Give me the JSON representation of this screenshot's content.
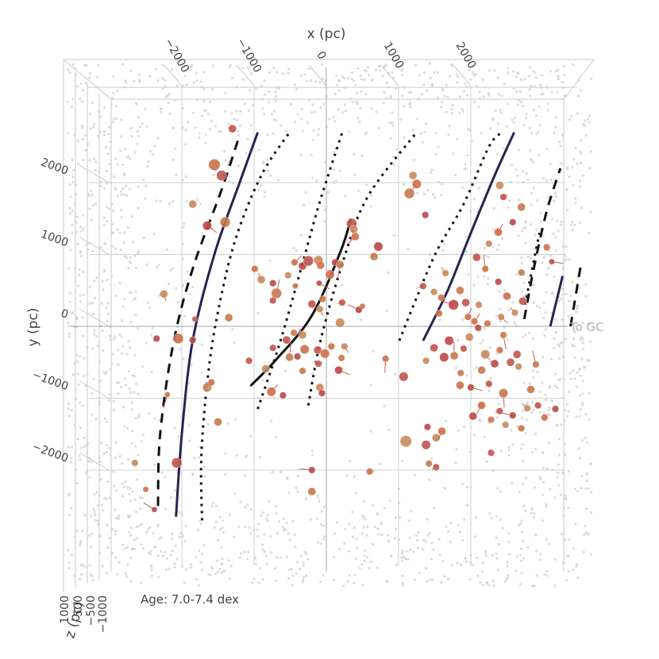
{
  "chart_data": {
    "type": "scatter",
    "title": "",
    "annotation": "Age: 7.0-7.4 dex",
    "gc_label": "To GC",
    "axes": {
      "x": {
        "label": "x (pc)",
        "range": [
          -2300,
          2500
        ],
        "ticks": [
          -2000,
          -1000,
          0,
          1000,
          2000
        ]
      },
      "y": {
        "label": "y (pc)",
        "range": [
          -2700,
          2700
        ],
        "ticks": [
          2000,
          1000,
          0,
          -1000,
          -2000
        ]
      },
      "z": {
        "label": "z (pc)",
        "ticks": [
          1000,
          500,
          -500,
          -1000
        ]
      }
    },
    "colors": {
      "background_points": "#d3cdcc",
      "cluster_palette": [
        "#c0564e",
        "#c88a5c",
        "#d0704a",
        "#b94a48",
        "#c7794e"
      ],
      "arm_fit": "#25244f",
      "spur_fit": "#111111",
      "grid": "#d0d0d0"
    },
    "background_density": "dense field stars concentrated toward the panel edges and corners",
    "spiral_arms": [
      {
        "name": "",
        "style": "solid",
        "center": [
          [
            -2080,
            -2650
          ],
          [
            -2000,
            -1500
          ],
          [
            -1850,
            -200
          ],
          [
            -1550,
            1000
          ],
          [
            -1200,
            2000
          ],
          [
            -950,
            2700
          ]
        ],
        "inner": [
          [
            -1720,
            -2700
          ],
          [
            -1730,
            -1800
          ],
          [
            -1640,
            -700
          ],
          [
            -1500,
            200
          ],
          [
            -1260,
            1200
          ],
          [
            -900,
            2100
          ],
          [
            -510,
            2700
          ]
        ],
        "outer": [
          [
            -2330,
            -2500
          ],
          [
            -2300,
            -1500
          ],
          [
            -2120,
            -250
          ],
          [
            -1850,
            800
          ],
          [
            -1450,
            1900
          ],
          [
            -1220,
            2600
          ]
        ]
      },
      {
        "name": "",
        "style": "solid",
        "center": [
          [
            1340,
            -200
          ],
          [
            1680,
            500
          ],
          [
            2000,
            1300
          ],
          [
            2330,
            2100
          ],
          [
            2600,
            2700
          ]
        ],
        "inner": [
          [
            1010,
            -200
          ],
          [
            1250,
            400
          ],
          [
            1530,
            1050
          ],
          [
            1900,
            1700
          ],
          [
            2250,
            2500
          ],
          [
            2430,
            2700
          ]
        ],
        "outer": [
          [
            2740,
            100
          ],
          [
            2870,
            800
          ],
          [
            3050,
            1600
          ],
          [
            3240,
            2200
          ]
        ]
      },
      {
        "name": "",
        "style": "solid",
        "center": [
          [
            3100,
            0
          ],
          [
            3270,
            700
          ]
        ],
        "inner": [
          [
            2750,
            300
          ],
          [
            2950,
            1300
          ]
        ],
        "outer": [
          [
            3380,
            0
          ],
          [
            3530,
            900
          ]
        ]
      }
    ],
    "local_spur": {
      "fit": [
        [
          -1050,
          -830
        ],
        [
          -700,
          -470
        ],
        [
          -200,
          150
        ],
        [
          200,
          1050
        ],
        [
          340,
          1500
        ]
      ],
      "inner": [
        [
          -950,
          -1150
        ],
        [
          -650,
          -250
        ],
        [
          -350,
          800
        ],
        [
          -100,
          1700
        ],
        [
          220,
          2700
        ]
      ],
      "outer": [
        [
          -250,
          -1100
        ],
        [
          -80,
          -200
        ],
        [
          230,
          900
        ],
        [
          570,
          1800
        ],
        [
          1250,
          2700
        ]
      ]
    },
    "clusters": [
      [
        -1450,
        2100,
        9
      ],
      [
        -1850,
        1700,
        7
      ],
      [
        -1550,
        2250,
        10
      ],
      [
        -1650,
        1400,
        8
      ],
      [
        -1400,
        1450,
        9
      ],
      [
        -1300,
        2750,
        7
      ],
      [
        -2250,
        450,
        7
      ],
      [
        -2050,
        -170,
        9
      ],
      [
        -2350,
        -170,
        6
      ],
      [
        -2200,
        -950,
        5
      ],
      [
        -1820,
        100,
        5
      ],
      [
        -1650,
        -850,
        8
      ],
      [
        -1590,
        -780,
        6
      ],
      [
        -1850,
        -190,
        6
      ],
      [
        -1500,
        -1330,
        7
      ],
      [
        -2070,
        -1900,
        9
      ],
      [
        -2650,
        -1900,
        6
      ],
      [
        -2500,
        -2270,
        5
      ],
      [
        -2380,
        -2550,
        5
      ],
      [
        -1350,
        120,
        7
      ],
      [
        -1070,
        -480,
        6
      ],
      [
        -900,
        650,
        7
      ],
      [
        -990,
        800,
        6
      ],
      [
        -740,
        600,
        6
      ],
      [
        -690,
        460,
        9
      ],
      [
        -740,
        360,
        6
      ],
      [
        -530,
        710,
        6
      ],
      [
        -440,
        890,
        6
      ],
      [
        -330,
        840,
        7
      ],
      [
        -430,
        560,
        5
      ],
      [
        -250,
        910,
        9
      ],
      [
        -110,
        920,
        8
      ],
      [
        -80,
        850,
        7
      ],
      [
        -100,
        600,
        5
      ],
      [
        -50,
        380,
        6
      ],
      [
        -200,
        310,
        7
      ],
      [
        -90,
        240,
        6
      ],
      [
        50,
        720,
        8
      ],
      [
        120,
        890,
        6
      ],
      [
        190,
        860,
        7
      ],
      [
        350,
        1430,
        9
      ],
      [
        380,
        1350,
        7
      ],
      [
        400,
        1250,
        7
      ],
      [
        720,
        1110,
        8
      ],
      [
        660,
        970,
        7
      ],
      [
        220,
        330,
        6
      ],
      [
        190,
        50,
        8
      ],
      [
        500,
        280,
        5
      ],
      [
        450,
        230,
        6
      ],
      [
        -450,
        -90,
        6
      ],
      [
        -550,
        -190,
        7
      ],
      [
        -330,
        -120,
        7
      ],
      [
        -300,
        -320,
        8
      ],
      [
        -400,
        -420,
        6
      ],
      [
        -510,
        -430,
        7
      ],
      [
        -740,
        -300,
        6
      ],
      [
        -840,
        -590,
        7
      ],
      [
        -760,
        -910,
        8
      ],
      [
        -600,
        -960,
        6
      ],
      [
        -330,
        -620,
        6
      ],
      [
        -110,
        -520,
        6
      ],
      [
        -90,
        -850,
        7
      ],
      [
        70,
        -280,
        6
      ],
      [
        170,
        -610,
        7
      ],
      [
        210,
        -440,
        6
      ],
      [
        -120,
        -330,
        7
      ],
      [
        250,
        -280,
        6
      ],
      [
        -20,
        -380,
        8
      ],
      [
        -60,
        -930,
        6
      ],
      [
        820,
        -450,
        6
      ],
      [
        1070,
        -700,
        8
      ],
      [
        1200,
        2100,
        7
      ],
      [
        1250,
        1980,
        8
      ],
      [
        1370,
        1550,
        6
      ],
      [
        1150,
        1850,
        9
      ],
      [
        1340,
        560,
        6
      ],
      [
        1490,
        480,
        6
      ],
      [
        1590,
        400,
        6
      ],
      [
        1760,
        300,
        9
      ],
      [
        1850,
        500,
        7
      ],
      [
        1930,
        330,
        7
      ],
      [
        1650,
        740,
        6
      ],
      [
        1560,
        180,
        6
      ],
      [
        1700,
        -200,
        8
      ],
      [
        1770,
        -410,
        7
      ],
      [
        1900,
        -310,
        6
      ],
      [
        1980,
        -150,
        7
      ],
      [
        2050,
        70,
        6
      ],
      [
        1630,
        -430,
        8
      ],
      [
        1860,
        -650,
        6
      ],
      [
        1490,
        -300,
        7
      ],
      [
        1380,
        -480,
        6
      ],
      [
        1850,
        -820,
        7
      ],
      [
        2000,
        -850,
        6
      ],
      [
        2150,
        -610,
        7
      ],
      [
        2250,
        -800,
        6
      ],
      [
        2200,
        -390,
        8
      ],
      [
        2400,
        -330,
        6
      ],
      [
        2330,
        -520,
        7
      ],
      [
        2450,
        -930,
        8
      ],
      [
        2550,
        -500,
        7
      ],
      [
        2660,
        -560,
        6
      ],
      [
        2150,
        -1100,
        7
      ],
      [
        2030,
        -1250,
        7
      ],
      [
        2280,
        -1300,
        6
      ],
      [
        2400,
        -1180,
        6
      ],
      [
        2480,
        -1370,
        6
      ],
      [
        2700,
        -1420,
        6
      ],
      [
        2580,
        -1240,
        6
      ],
      [
        2830,
        -880,
        7
      ],
      [
        2930,
        -1100,
        6
      ],
      [
        2610,
        190,
        6
      ],
      [
        2500,
        420,
        7
      ],
      [
        2380,
        620,
        6
      ],
      [
        2200,
        800,
        6
      ],
      [
        2080,
        960,
        7
      ],
      [
        2250,
        1150,
        6
      ],
      [
        2380,
        1310,
        7
      ],
      [
        2580,
        1450,
        6
      ],
      [
        2700,
        1660,
        7
      ],
      [
        2450,
        1800,
        6
      ],
      [
        2400,
        1960,
        7
      ],
      [
        3050,
        1100,
        6
      ],
      [
        3120,
        900,
        5
      ],
      [
        2700,
        750,
        6
      ],
      [
        2720,
        350,
        7
      ],
      [
        2420,
        130,
        6
      ],
      [
        2230,
        40,
        6
      ],
      [
        2100,
        -20,
        6
      ],
      [
        2450,
        -120,
        6
      ],
      [
        1380,
        -1650,
        8
      ],
      [
        1520,
        -1550,
        7
      ],
      [
        1600,
        -1460,
        7
      ],
      [
        1400,
        -1400,
        6
      ],
      [
        1420,
        -1910,
        6
      ],
      [
        1520,
        -1960,
        6
      ],
      [
        1100,
        -1600,
        10
      ],
      [
        600,
        -2020,
        6
      ],
      [
        -200,
        -2000,
        6
      ],
      [
        -200,
        -2300,
        7
      ],
      [
        2280,
        -1760,
        6
      ],
      [
        2780,
        -1140,
        6
      ],
      [
        3020,
        -1270,
        6
      ],
      [
        3170,
        -1150,
        6
      ],
      [
        2900,
        -530,
        6
      ],
      [
        2640,
        -390,
        7
      ],
      [
        2110,
        300,
        6
      ],
      [
        1960,
        130,
        6
      ]
    ]
  }
}
